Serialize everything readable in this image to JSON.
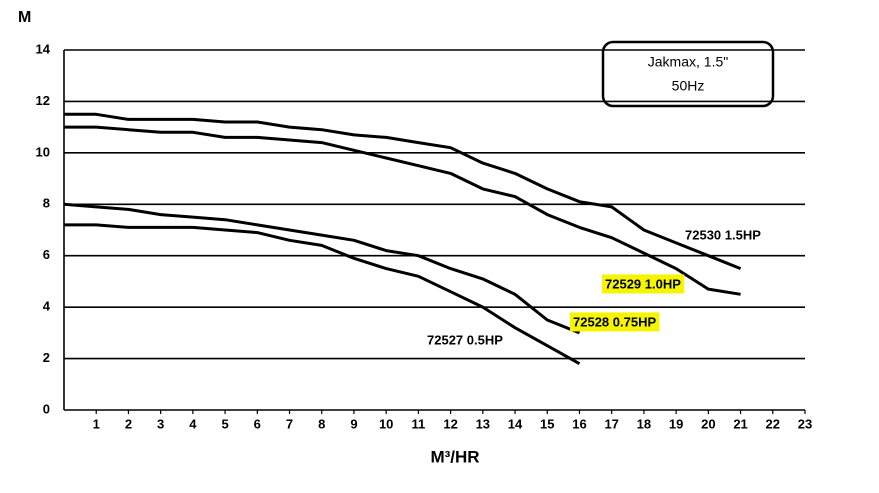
{
  "chart_data": {
    "type": "line",
    "y_label": "M",
    "x_label": "M³/HR",
    "annotation": [
      "Jakmax, 1.5\"",
      "50Hz"
    ],
    "xlim": [
      0,
      23
    ],
    "xticks": [
      1,
      2,
      3,
      4,
      5,
      6,
      7,
      8,
      9,
      10,
      11,
      12,
      13,
      14,
      15,
      16,
      17,
      18,
      19,
      20,
      21,
      22,
      23
    ],
    "ylim": [
      0,
      14
    ],
    "yticks": [
      0,
      2,
      4,
      6,
      8,
      10,
      12,
      14
    ],
    "grid": true,
    "series": [
      {
        "name": "72530 1.5HP",
        "color": "#000000",
        "x": [
          0,
          1,
          2,
          3,
          4,
          5,
          6,
          7,
          8,
          9,
          10,
          11,
          12,
          13,
          14,
          15,
          16,
          17,
          18,
          19,
          20,
          21
        ],
        "values": [
          11.5,
          11.5,
          11.3,
          11.3,
          11.3,
          11.2,
          11.2,
          11.0,
          10.9,
          10.7,
          10.6,
          10.4,
          10.2,
          9.6,
          9.2,
          8.6,
          8.1,
          7.9,
          7.0,
          6.5,
          6.0,
          5.5
        ]
      },
      {
        "name": "72529 1.0HP",
        "color": "#000000",
        "highlight": "#f5f500",
        "x": [
          0,
          1,
          2,
          3,
          4,
          5,
          6,
          7,
          8,
          9,
          10,
          11,
          12,
          13,
          14,
          15,
          16,
          17,
          18,
          19,
          20,
          21
        ],
        "values": [
          11.0,
          11.0,
          10.9,
          10.8,
          10.8,
          10.6,
          10.6,
          10.5,
          10.4,
          10.1,
          9.8,
          9.5,
          9.2,
          8.6,
          8.3,
          7.6,
          7.1,
          6.7,
          6.1,
          5.5,
          4.7,
          4.5
        ]
      },
      {
        "name": "72528 0.75HP",
        "color": "#000000",
        "highlight": "#f5f500",
        "x": [
          0,
          1,
          2,
          3,
          4,
          5,
          6,
          7,
          8,
          9,
          10,
          11,
          12,
          13,
          14,
          15,
          16
        ],
        "values": [
          8.0,
          7.9,
          7.8,
          7.6,
          7.5,
          7.4,
          7.2,
          7.0,
          6.8,
          6.6,
          6.2,
          6.0,
          5.5,
          5.1,
          4.5,
          3.5,
          3.0
        ]
      },
      {
        "name": "72527 0.5HP",
        "color": "#000000",
        "x": [
          0,
          1,
          2,
          3,
          4,
          5,
          6,
          7,
          8,
          9,
          10,
          11,
          12,
          13,
          14,
          15,
          16
        ],
        "values": [
          7.2,
          7.2,
          7.1,
          7.1,
          7.1,
          7.0,
          6.9,
          6.6,
          6.4,
          5.9,
          5.5,
          5.2,
          4.6,
          4.0,
          3.2,
          2.5,
          1.8
        ]
      }
    ]
  }
}
